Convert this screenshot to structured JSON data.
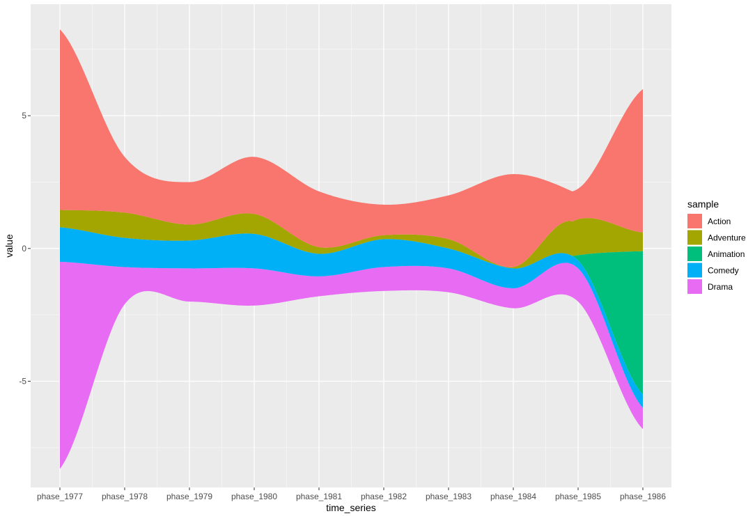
{
  "chart_data": {
    "type": "area",
    "subtype": "streamgraph",
    "title": "",
    "xlabel": "time_series",
    "ylabel": "value",
    "ylim": [
      -9.0,
      9.2
    ],
    "yticks": [
      -5,
      0,
      5
    ],
    "grid": true,
    "legend": {
      "title": "sample",
      "position": "right"
    },
    "categories": [
      "phase_1977",
      "phase_1978",
      "phase_1979",
      "phase_1980",
      "phase_1981",
      "phase_1982",
      "phase_1983",
      "phase_1984",
      "phase_1985",
      "phase_1986"
    ],
    "series": [
      {
        "name": "Drama",
        "color": "#E76BF3",
        "values": [
          7.8,
          1.4,
          1.25,
          1.4,
          0.75,
          0.9,
          0.9,
          0.75,
          1.25,
          0.8
        ]
      },
      {
        "name": "Comedy",
        "color": "#00B0F6",
        "values": [
          1.3,
          1.1,
          1.05,
          1.3,
          0.85,
          1.05,
          0.75,
          0.75,
          0.3,
          0.5
        ]
      },
      {
        "name": "Animation",
        "color": "#00BF7D",
        "values": [
          0.0,
          0.0,
          0.0,
          0.0,
          0.0,
          0.0,
          0.0,
          0.0,
          0.2,
          5.4
        ]
      },
      {
        "name": "Adventure",
        "color": "#A3A500",
        "values": [
          0.65,
          0.95,
          0.6,
          0.75,
          0.25,
          0.15,
          0.35,
          0.05,
          1.35,
          0.7
        ]
      },
      {
        "name": "Action",
        "color": "#F8766D",
        "values": [
          6.8,
          2.1,
          1.6,
          2.15,
          2.1,
          1.15,
          1.65,
          3.5,
          1.15,
          5.4
        ]
      }
    ],
    "offsets": [
      -8.3,
      -2.1,
      -2.0,
      -2.15,
      -1.8,
      -1.6,
      -1.65,
      -2.25,
      -2.0,
      -6.8
    ]
  }
}
